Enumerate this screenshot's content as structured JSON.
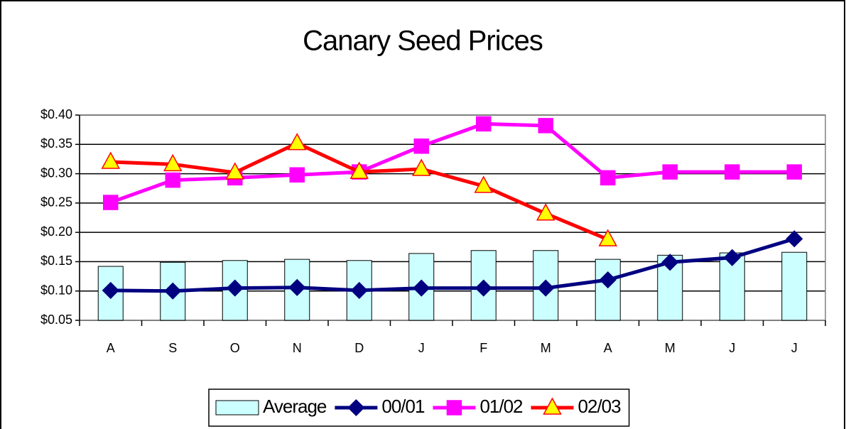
{
  "chart_data": {
    "type": "bar_line",
    "title": "Canary Seed Prices",
    "categories": [
      "A",
      "S",
      "O",
      "N",
      "D",
      "J",
      "F",
      "M",
      "A",
      "M",
      "J",
      "J"
    ],
    "series": [
      {
        "name": "Average",
        "type": "bar",
        "color": "#ccffff",
        "values": [
          0.142,
          0.149,
          0.152,
          0.154,
          0.152,
          0.164,
          0.169,
          0.169,
          0.154,
          0.161,
          0.165,
          0.166
        ]
      },
      {
        "name": "00/01",
        "type": "line",
        "color": "#000080",
        "marker": "diamond",
        "marker_color": "#000080",
        "values": [
          0.101,
          0.1,
          0.105,
          0.106,
          0.101,
          0.105,
          0.105,
          0.105,
          0.119,
          0.149,
          0.157,
          0.189
        ]
      },
      {
        "name": "01/02",
        "type": "line",
        "color": "#ff00ff",
        "marker": "square",
        "marker_color": "#ff00ff",
        "values": [
          0.251,
          0.289,
          0.293,
          0.298,
          0.303,
          0.347,
          0.385,
          0.382,
          0.293,
          0.303,
          0.303,
          0.303
        ]
      },
      {
        "name": "02/03",
        "type": "line",
        "color": "#ff0000",
        "marker": "triangle",
        "marker_color": "#ffff00",
        "values": [
          0.32,
          0.316,
          0.302,
          0.352,
          0.303,
          0.308,
          0.279,
          0.232,
          0.188,
          null,
          null,
          null
        ]
      }
    ],
    "ylim": [
      0.05,
      0.4
    ],
    "yticks": [
      {
        "value": 0.05,
        "label": "$0.05"
      },
      {
        "value": 0.1,
        "label": "$0.10"
      },
      {
        "value": 0.15,
        "label": "$0.15"
      },
      {
        "value": 0.2,
        "label": "$0.20"
      },
      {
        "value": 0.25,
        "label": "$0.25"
      },
      {
        "value": 0.3,
        "label": "$0.30"
      },
      {
        "value": 0.35,
        "label": "$0.35"
      },
      {
        "value": 0.4,
        "label": "$0.40"
      }
    ],
    "grid": true,
    "legend": "bottom"
  }
}
